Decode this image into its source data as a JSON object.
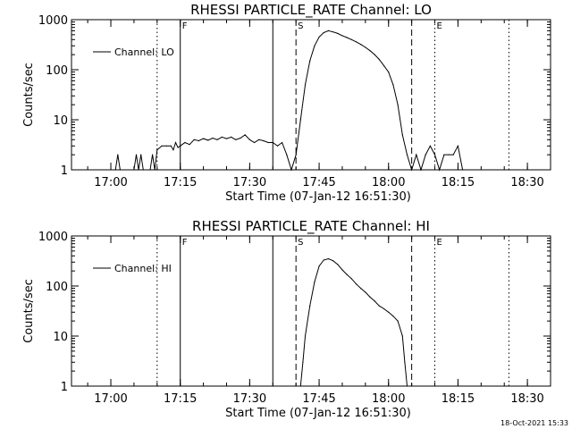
{
  "footer": {
    "timestamp": "18-Oct-2021 15:33"
  },
  "chart_data": [
    {
      "type": "line",
      "title": "RHESSI PARTICLE_RATE Channel: LO",
      "xlabel": "Start Time (07-Jan-12 16:51:30)",
      "ylabel": "Counts/sec",
      "x_unit": "minutes after 16:51:30",
      "xlim": [
        "16:51:30",
        "18:35:00"
      ],
      "ylim": [
        1,
        1000
      ],
      "yscale": "log",
      "x_ticks": [
        "17:00",
        "17:15",
        "17:30",
        "17:45",
        "18:00",
        "18:15",
        "18:30"
      ],
      "y_ticks": [
        "1",
        "10",
        "100",
        "1000"
      ],
      "legend": {
        "position": "top-left",
        "entries": [
          "Channel: LO"
        ]
      },
      "markers": [
        {
          "label": "F",
          "time": "17:15:00",
          "style": "solid"
        },
        {
          "label": "S",
          "time": "17:40:00",
          "style": "dashed"
        },
        {
          "label": "E",
          "time": "18:10:00",
          "style": "dotted"
        }
      ],
      "vlines": [
        {
          "time": "17:10:00",
          "style": "dotted"
        },
        {
          "time": "17:35:00",
          "style": "solid"
        },
        {
          "time": "18:05:00",
          "style": "dashed"
        },
        {
          "time": "18:26:00",
          "style": "dotted"
        }
      ],
      "series": [
        {
          "name": "Channel: LO",
          "points": [
            [
              "17:01:00",
              1
            ],
            [
              "17:01:30",
              2
            ],
            [
              "17:02:00",
              1
            ],
            [
              "17:05:00",
              1
            ],
            [
              "17:05:30",
              2
            ],
            [
              "17:06:00",
              1
            ],
            [
              "17:06:30",
              2
            ],
            [
              "17:07:00",
              1
            ],
            [
              "17:08:30",
              1
            ],
            [
              "17:09:00",
              2
            ],
            [
              "17:09:30",
              1
            ],
            [
              "17:10:00",
              2.5
            ],
            [
              "17:11:00",
              3
            ],
            [
              "17:12:00",
              3
            ],
            [
              "17:13:00",
              3
            ],
            [
              "17:13:30",
              2.5
            ],
            [
              "17:14:00",
              3.5
            ],
            [
              "17:14:30",
              2.8
            ],
            [
              "17:15:00",
              3
            ],
            [
              "17:16:00",
              3.5
            ],
            [
              "17:17:00",
              3.2
            ],
            [
              "17:18:00",
              4
            ],
            [
              "17:19:00",
              3.8
            ],
            [
              "17:20:00",
              4.2
            ],
            [
              "17:21:00",
              3.9
            ],
            [
              "17:22:00",
              4.3
            ],
            [
              "17:23:00",
              4
            ],
            [
              "17:24:00",
              4.5
            ],
            [
              "17:25:00",
              4.2
            ],
            [
              "17:26:00",
              4.5
            ],
            [
              "17:27:00",
              4
            ],
            [
              "17:28:00",
              4.3
            ],
            [
              "17:29:00",
              5
            ],
            [
              "17:30:00",
              4
            ],
            [
              "17:31:00",
              3.5
            ],
            [
              "17:32:00",
              4
            ],
            [
              "17:33:00",
              3.8
            ],
            [
              "17:34:00",
              3.5
            ],
            [
              "17:35:00",
              3.5
            ],
            [
              "17:36:00",
              3
            ],
            [
              "17:37:00",
              3.5
            ],
            [
              "17:38:00",
              2
            ],
            [
              "17:39:00",
              1
            ],
            [
              "17:40:00",
              2
            ],
            [
              "17:41:00",
              10
            ],
            [
              "17:42:00",
              50
            ],
            [
              "17:43:00",
              150
            ],
            [
              "17:44:00",
              300
            ],
            [
              "17:45:00",
              450
            ],
            [
              "17:46:00",
              550
            ],
            [
              "17:47:00",
              600
            ],
            [
              "17:48:00",
              570
            ],
            [
              "17:49:00",
              530
            ],
            [
              "17:50:00",
              480
            ],
            [
              "17:51:00",
              440
            ],
            [
              "17:52:00",
              400
            ],
            [
              "17:53:00",
              360
            ],
            [
              "17:54:00",
              320
            ],
            [
              "17:55:00",
              280
            ],
            [
              "17:56:00",
              240
            ],
            [
              "17:57:00",
              200
            ],
            [
              "17:58:00",
              160
            ],
            [
              "17:59:00",
              120
            ],
            [
              "18:00:00",
              90
            ],
            [
              "18:01:00",
              50
            ],
            [
              "18:02:00",
              20
            ],
            [
              "18:03:00",
              5
            ],
            [
              "18:04:00",
              2
            ],
            [
              "18:05:00",
              1
            ],
            [
              "18:06:00",
              2
            ],
            [
              "18:07:00",
              1
            ],
            [
              "18:08:00",
              2
            ],
            [
              "18:09:00",
              3
            ],
            [
              "18:10:00",
              2
            ],
            [
              "18:11:00",
              1
            ],
            [
              "18:12:00",
              2
            ],
            [
              "18:13:00",
              2
            ],
            [
              "18:14:00",
              2
            ],
            [
              "18:15:00",
              3
            ],
            [
              "18:16:00",
              1
            ]
          ]
        }
      ]
    },
    {
      "type": "line",
      "title": "RHESSI PARTICLE_RATE Channel: HI",
      "xlabel": "Start Time (07-Jan-12 16:51:30)",
      "ylabel": "Counts/sec",
      "x_unit": "minutes after 16:51:30",
      "xlim": [
        "16:51:30",
        "18:35:00"
      ],
      "ylim": [
        1,
        1000
      ],
      "yscale": "log",
      "x_ticks": [
        "17:00",
        "17:15",
        "17:30",
        "17:45",
        "18:00",
        "18:15",
        "18:30"
      ],
      "y_ticks": [
        "1",
        "10",
        "100",
        "1000"
      ],
      "legend": {
        "position": "top-left",
        "entries": [
          "Channel: HI"
        ]
      },
      "markers": [
        {
          "label": "F",
          "time": "17:15:00",
          "style": "solid"
        },
        {
          "label": "S",
          "time": "17:40:00",
          "style": "dashed"
        },
        {
          "label": "E",
          "time": "18:10:00",
          "style": "dotted"
        }
      ],
      "vlines": [
        {
          "time": "17:10:00",
          "style": "dotted"
        },
        {
          "time": "17:35:00",
          "style": "solid"
        },
        {
          "time": "18:05:00",
          "style": "dashed"
        },
        {
          "time": "18:26:00",
          "style": "dotted"
        }
      ],
      "series": [
        {
          "name": "Channel: HI",
          "points": [
            [
              "17:41:00",
              1
            ],
            [
              "17:41:30",
              3
            ],
            [
              "17:42:00",
              10
            ],
            [
              "17:43:00",
              40
            ],
            [
              "17:44:00",
              120
            ],
            [
              "17:45:00",
              250
            ],
            [
              "17:46:00",
              330
            ],
            [
              "17:47:00",
              350
            ],
            [
              "17:48:00",
              320
            ],
            [
              "17:49:00",
              270
            ],
            [
              "17:50:00",
              210
            ],
            [
              "17:51:00",
              170
            ],
            [
              "17:52:00",
              140
            ],
            [
              "17:53:00",
              110
            ],
            [
              "17:54:00",
              90
            ],
            [
              "17:55:00",
              75
            ],
            [
              "17:56:00",
              60
            ],
            [
              "17:57:00",
              50
            ],
            [
              "17:58:00",
              40
            ],
            [
              "17:59:00",
              35
            ],
            [
              "18:00:00",
              30
            ],
            [
              "18:01:00",
              25
            ],
            [
              "18:02:00",
              20
            ],
            [
              "18:03:00",
              10
            ],
            [
              "18:03:30",
              3
            ],
            [
              "18:04:00",
              1
            ]
          ]
        }
      ]
    }
  ]
}
